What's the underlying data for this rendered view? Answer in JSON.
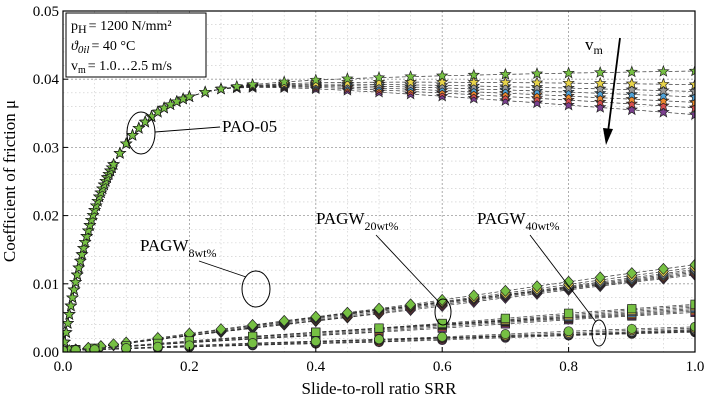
{
  "chart_data": {
    "type": "scatter",
    "xlabel": "Slide-to-roll ratio SRR",
    "ylabel": "Coefficient of friction μ",
    "xlim": [
      0.0,
      1.0
    ],
    "ylim": [
      0.0,
      0.05
    ],
    "xticks": [
      "0.0",
      "0.2",
      "0.4",
      "0.6",
      "0.8",
      "1.0"
    ],
    "yticks": [
      "0.00",
      "0.01",
      "0.02",
      "0.03",
      "0.04",
      "0.05"
    ],
    "grid": true,
    "legend_box": {
      "line1_main": "p",
      "line1_sub": "H",
      "line1_rest": "= 1200 N/mm²",
      "line2_main": "ϑ",
      "line2_sub": "0il",
      "line2_rest": "= 40 °C",
      "line3_main": "v",
      "line3_sub": "m",
      "line3_rest": "= 1.0…2.5 m/s"
    },
    "vm_label": {
      "main": "v",
      "sub": "m"
    },
    "annotations": {
      "pao": {
        "text": "PAO-05"
      },
      "pagw8": {
        "main": "PAGW",
        "sub": "8wt%"
      },
      "pagw20": {
        "main": "PAGW",
        "sub": "20wt%"
      },
      "pagw40": {
        "main": "PAGW",
        "sub": "40wt%"
      }
    },
    "series_colors": [
      "#7b3f8f",
      "#d94f4f",
      "#f08a2c",
      "#4fa3d9",
      "#9a9a9a",
      "#e9d54a",
      "#76c043"
    ],
    "groups": [
      {
        "name": "PAO-05",
        "marker": "star",
        "model": "pao",
        "y_end_fast_to_slow": [
          0.0348,
          0.0358,
          0.0366,
          0.0374,
          0.0382,
          0.0392,
          0.0412
        ]
      },
      {
        "name": "PAGW 8wt%",
        "marker": "diamond",
        "model": "linear",
        "x": [
          0.0,
          0.01,
          0.02,
          0.04,
          0.06,
          0.08,
          0.1,
          0.15,
          0.2,
          0.25,
          0.3,
          0.35,
          0.4,
          0.45,
          0.5,
          0.55,
          0.6,
          0.65,
          0.7,
          0.75,
          0.8,
          0.85,
          0.9,
          0.95,
          1.0
        ],
        "y_start": 0.0001,
        "y_end_fast_to_slow": [
          0.0113,
          0.0115,
          0.0117,
          0.0119,
          0.0121,
          0.0124,
          0.0128
        ]
      },
      {
        "name": "PAGW 20wt%",
        "marker": "square",
        "model": "linear",
        "x": [
          0.0,
          0.02,
          0.05,
          0.1,
          0.15,
          0.2,
          0.3,
          0.4,
          0.5,
          0.6,
          0.7,
          0.8,
          0.9,
          1.0
        ],
        "y_start": 0.0002,
        "y_end_fast_to_slow": [
          0.0058,
          0.006,
          0.0062,
          0.0064,
          0.0066,
          0.0068,
          0.007
        ]
      },
      {
        "name": "PAGW 40wt%",
        "marker": "circle",
        "model": "linear",
        "x": [
          0.0,
          0.02,
          0.05,
          0.1,
          0.15,
          0.2,
          0.3,
          0.4,
          0.5,
          0.6,
          0.7,
          0.8,
          0.9,
          1.0
        ],
        "y_start": 0.0002,
        "y_end_fast_to_slow": [
          0.0029,
          0.003,
          0.0031,
          0.0032,
          0.0033,
          0.0035,
          0.0037
        ]
      }
    ]
  }
}
